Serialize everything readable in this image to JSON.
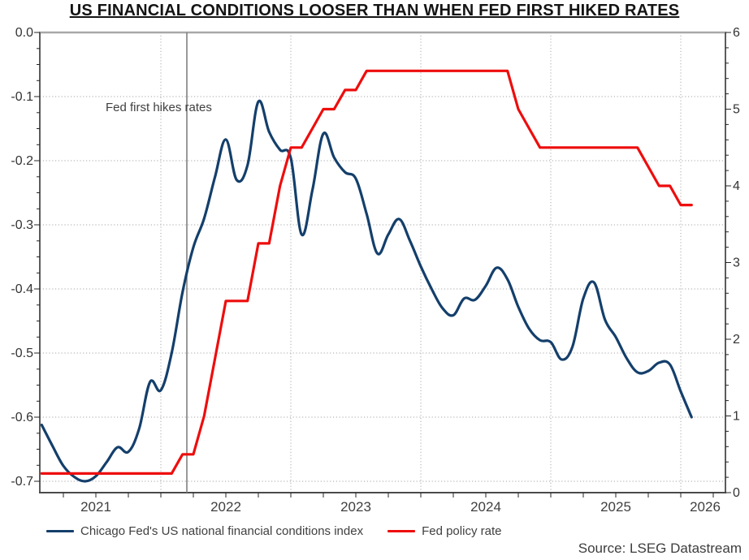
{
  "title": "US FINANCIAL CONDITIONS LOOSER THAN WHEN FED FIRST HIKED RATES",
  "source": "Source: LSEG Datastream",
  "colors": {
    "nfci_line": "#143f6b",
    "policy_rate_line": "#ee0d0d",
    "grid": "#b8b8b8",
    "frame_dark": "#4a4a4a",
    "frame_top": "#a8a8a8",
    "event_line": "#808080",
    "axis_text": "#333333",
    "label_text": "#404040"
  },
  "chart_data": {
    "type": "line",
    "title": "US FINANCIAL CONDITIONS LOOSER THAN WHEN FED FIRST HIKED RATES",
    "x_axis": {
      "range_years": [
        2021.07,
        2026.34
      ],
      "year_labels": [
        "2021",
        "2022",
        "2023",
        "2024",
        "2025",
        "2026"
      ],
      "gridline_years": [
        2022,
        2023,
        2024,
        2025,
        2026
      ],
      "tick_interval_years": 0.25,
      "grid": "dotted"
    },
    "y_left": {
      "range": [
        -0.7175,
        0
      ],
      "tick_labels": [
        "0.0",
        "-0.1",
        "-0.2",
        "-0.3",
        "-0.4",
        "-0.5",
        "-0.6",
        "-0.7"
      ],
      "tick_values": [
        0,
        -0.1,
        -0.2,
        -0.3,
        -0.4,
        -0.5,
        -0.6,
        -0.7
      ],
      "minor_tick": 0.025,
      "grid": "dotted"
    },
    "y_right": {
      "range": [
        0,
        6
      ],
      "tick_labels": [
        "6",
        "5",
        "4",
        "3",
        "2",
        "1",
        "0"
      ],
      "tick_values": [
        6,
        5,
        4,
        3,
        2,
        1,
        0
      ],
      "minor_tick": 0.2
    },
    "event_line": {
      "x_year": 2022.2,
      "label": "Fed first hikes rates"
    },
    "legend_position": "bottom",
    "series": [
      {
        "name": "Chicago Fed's US national financial conditions index",
        "axis": "left",
        "color": "#143f6b",
        "freq": "monthly",
        "start": "2021-02",
        "smooth": true,
        "values": [
          -0.612,
          -0.645,
          -0.676,
          -0.693,
          -0.7,
          -0.692,
          -0.67,
          -0.647,
          -0.654,
          -0.618,
          -0.545,
          -0.558,
          -0.5,
          -0.405,
          -0.335,
          -0.29,
          -0.225,
          -0.167,
          -0.23,
          -0.207,
          -0.108,
          -0.155,
          -0.183,
          -0.196,
          -0.315,
          -0.245,
          -0.158,
          -0.195,
          -0.218,
          -0.228,
          -0.283,
          -0.345,
          -0.315,
          -0.291,
          -0.325,
          -0.365,
          -0.4,
          -0.43,
          -0.441,
          -0.415,
          -0.417,
          -0.395,
          -0.367,
          -0.385,
          -0.428,
          -0.462,
          -0.48,
          -0.483,
          -0.51,
          -0.49,
          -0.415,
          -0.39,
          -0.448,
          -0.475,
          -0.508,
          -0.53,
          -0.528,
          -0.515,
          -0.518,
          -0.56,
          -0.6
        ]
      },
      {
        "name": "Fed policy rate",
        "axis": "right",
        "color": "#ee0d0d",
        "freq": "monthly",
        "start": "2021-02",
        "smooth": false,
        "values": [
          0.25,
          0.25,
          0.25,
          0.25,
          0.25,
          0.25,
          0.25,
          0.25,
          0.25,
          0.25,
          0.25,
          0.25,
          0.25,
          0.5,
          0.5,
          1.0,
          1.75,
          2.5,
          2.5,
          2.5,
          3.25,
          3.25,
          4.0,
          4.5,
          4.5,
          4.75,
          5.0,
          5.0,
          5.25,
          5.25,
          5.5,
          5.5,
          5.5,
          5.5,
          5.5,
          5.5,
          5.5,
          5.5,
          5.5,
          5.5,
          5.5,
          5.5,
          5.5,
          5.5,
          5.0,
          4.75,
          4.5,
          4.5,
          4.5,
          4.5,
          4.5,
          4.5,
          4.5,
          4.5,
          4.5,
          4.5,
          4.25,
          4.0,
          4.0,
          3.75,
          3.75
        ]
      }
    ]
  }
}
